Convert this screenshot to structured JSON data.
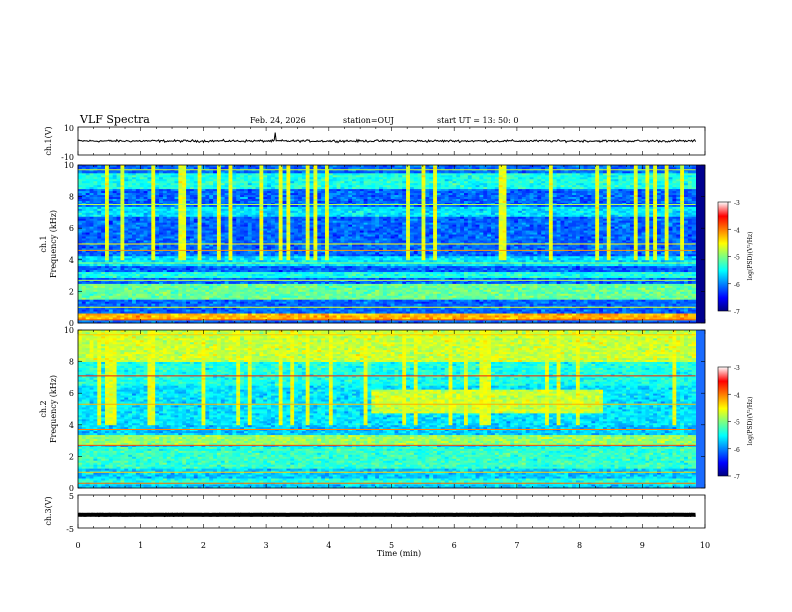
{
  "header": {
    "title": "VLF Spectra",
    "date": "Feb. 24, 2026",
    "station": "station=OUJ",
    "start": "start  UT =   13: 50: 0"
  },
  "chart_data": {
    "type": "heatmap",
    "x": {
      "label": "Time  (min)",
      "range": [
        0,
        10
      ],
      "ticks": [
        "0",
        "1",
        "2",
        "3",
        "4",
        "5",
        "6",
        "7",
        "8",
        "9",
        "10"
      ]
    },
    "panels": [
      {
        "id": "ch1-wave",
        "kind": "waveform",
        "ylabel": "ch.1(V)",
        "ylim": [
          -10,
          10
        ],
        "yticks": [
          "10",
          "-10"
        ],
        "baseline": 0,
        "noise_amp": 1.2
      },
      {
        "id": "ch1-spec",
        "kind": "spectrogram",
        "ylabel": "ch.1",
        "ylabel2": "Frequency  (kHz)",
        "ylim": [
          0,
          10
        ],
        "yticks": [
          "0",
          "2",
          "4",
          "6",
          "8",
          "10"
        ],
        "cbar": {
          "label": "log(PSD)(V²/Hz)",
          "range": [
            -7,
            -3
          ],
          "ticks": [
            "-3",
            "-4",
            "-5",
            "-6",
            "-7"
          ]
        },
        "background": -6.1,
        "bands": [
          [
            0.3,
            0.6,
            -4.2
          ],
          [
            1.5,
            2.5,
            -5.1
          ],
          [
            2.9,
            3.3,
            -5.4
          ],
          [
            3.6,
            4.2,
            -5.6
          ],
          [
            4.5,
            4.8,
            -6.6
          ],
          [
            6.8,
            7.4,
            -5.6
          ],
          [
            8.5,
            9.5,
            -5.4
          ]
        ],
        "lines": [
          [
            0.2,
            -3.8
          ],
          [
            1.0,
            -4.6
          ],
          [
            2.7,
            -4.8
          ],
          [
            3.8,
            -4.9
          ],
          [
            4.6,
            -4.1
          ],
          [
            5.0,
            -4.5
          ],
          [
            7.5,
            -4.8
          ],
          [
            9.7,
            -4.7
          ]
        ]
      },
      {
        "id": "ch2-spec",
        "kind": "spectrogram",
        "ylabel": "ch.2",
        "ylabel2": "Frequency  (kHz)",
        "ylim": [
          0,
          10
        ],
        "yticks": [
          "0",
          "2",
          "4",
          "6",
          "8",
          "10"
        ],
        "cbar": {
          "label": "log(PSD)(V²/Hz)",
          "range": [
            -7,
            -3
          ],
          "ticks": [
            "-3",
            "-4",
            "-5",
            "-6",
            "-7"
          ]
        },
        "background": -5.7,
        "bands": [
          [
            0.2,
            0.6,
            -5.4
          ],
          [
            1.2,
            2.6,
            -5.3
          ],
          [
            2.8,
            3.4,
            -4.9
          ],
          [
            4.0,
            6.5,
            -5.6
          ],
          [
            6.5,
            8.0,
            -5.4
          ],
          [
            8.0,
            10.0,
            -4.7
          ]
        ],
        "lines": [
          [
            0.3,
            -3.9
          ],
          [
            1.0,
            -4.3
          ],
          [
            2.7,
            -3.8
          ],
          [
            3.7,
            -4.0
          ],
          [
            5.3,
            -4.2
          ],
          [
            7.1,
            -3.6
          ],
          [
            9.7,
            -4.3
          ]
        ],
        "event": {
          "t_start": 4.65,
          "t_end": 8.35,
          "f_low": 4.8,
          "f_high": 6.3,
          "value": -4.7
        }
      },
      {
        "id": "ch3-wave",
        "kind": "waveform",
        "ylabel": "ch.3(V)",
        "ylim": [
          -5,
          5
        ],
        "yticks": [
          "5",
          "-5"
        ],
        "baseline": -1,
        "noise_amp": 0.3
      }
    ],
    "data_span_min": [
      0,
      9.85
    ]
  }
}
